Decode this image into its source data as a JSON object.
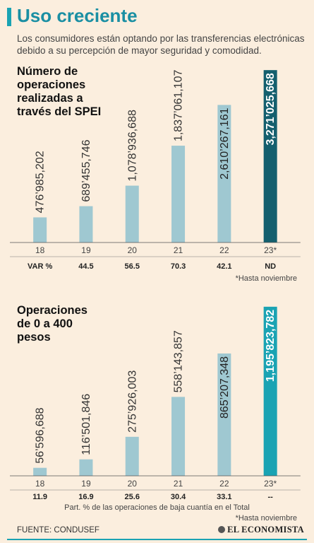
{
  "header": {
    "title": "Uso creciente",
    "subtitle": "Los consumidores están optando por las transferencias electrónicas debido a su percepción de mayor seguridad y comodidad."
  },
  "colors": {
    "accent": "#1aa3b3",
    "bar": "#9fc8d1",
    "bar_highlight": "#145f6e",
    "bar_bright": "#1aa3b3",
    "background": "#fbeede"
  },
  "chart_data": [
    {
      "type": "bar",
      "title": "Número de\noperaciones\nrealizadas a\ntravés del SPEI",
      "categories": [
        "18",
        "19",
        "20",
        "21",
        "22",
        "23*"
      ],
      "values": [
        476985202,
        689455746,
        1078936688,
        1837061107,
        2610267161,
        3271025668
      ],
      "data_labels": [
        "476’985,202",
        "689’455,746",
        "1,078’936,688",
        "1,837’061,107",
        "2,610’267,161",
        "3,271’025,668"
      ],
      "row_label": "VAR %",
      "row_values": [
        "",
        "44.5",
        "56.5",
        "70.3",
        "42.1",
        "ND"
      ],
      "footnote": "*Hasta noviembre",
      "ylim": [
        0,
        3300000000
      ]
    },
    {
      "type": "bar",
      "title": "Operaciones\nde 0 a 400\npesos",
      "categories": [
        "18",
        "19",
        "20",
        "21",
        "22",
        "23*"
      ],
      "values": [
        56596688,
        116501846,
        275926003,
        558143857,
        865207348,
        1195823782
      ],
      "data_labels": [
        "56’596,688",
        "116’501,846",
        "275’926,003",
        "558’143,857",
        "865’207,348",
        "1,195’823,782"
      ],
      "row_label": "",
      "row_values": [
        "11.9",
        "16.9",
        "25.6",
        "30.4",
        "33.1",
        "--"
      ],
      "row_note": "Part. % de las operaciones de baja cuantía en el Total",
      "footnote": "*Hasta noviembre",
      "ylim": [
        0,
        1210000000
      ]
    }
  ],
  "footer": {
    "source": "FUENTE: CONDUSEF",
    "logo": "EL ECONOMISTA"
  }
}
